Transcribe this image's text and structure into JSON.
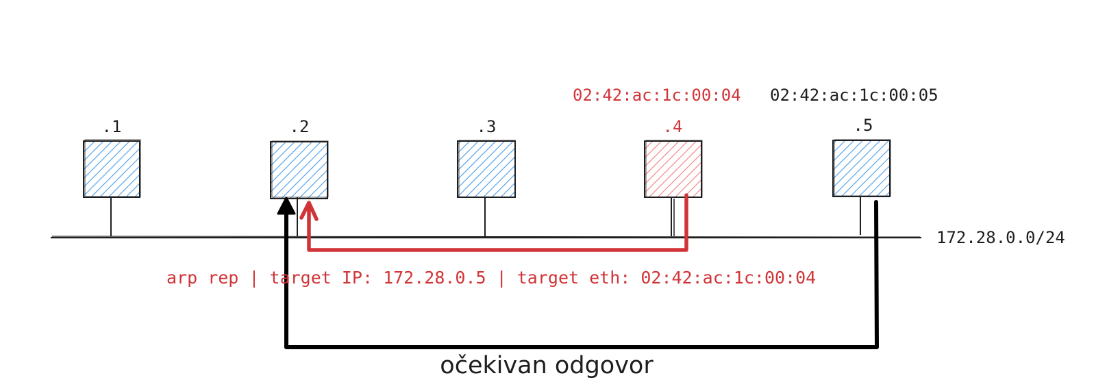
{
  "colors": {
    "normal_fill": "#4a9be8",
    "attacker_fill": "#f27e7e",
    "stroke": "#1e1e1e",
    "attack": "#d13438",
    "expected": "#000000"
  },
  "hosts": [
    {
      "label": ".1",
      "attacker": false
    },
    {
      "label": ".2",
      "attacker": false
    },
    {
      "label": ".3",
      "attacker": false
    },
    {
      "label": ".4",
      "attacker": true,
      "mac": "02:42:ac:1c:00:04"
    },
    {
      "label": ".5",
      "attacker": false,
      "mac": "02:42:ac:1c:00:05"
    }
  ],
  "network": {
    "subnet": "172.28.0.0/24"
  },
  "arp_reply": {
    "text": "arp rep | target IP: 172.28.0.5 | target eth: 02:42:ac:1c:00:04"
  },
  "expected_reply": {
    "text": "očekivan odgovor"
  }
}
